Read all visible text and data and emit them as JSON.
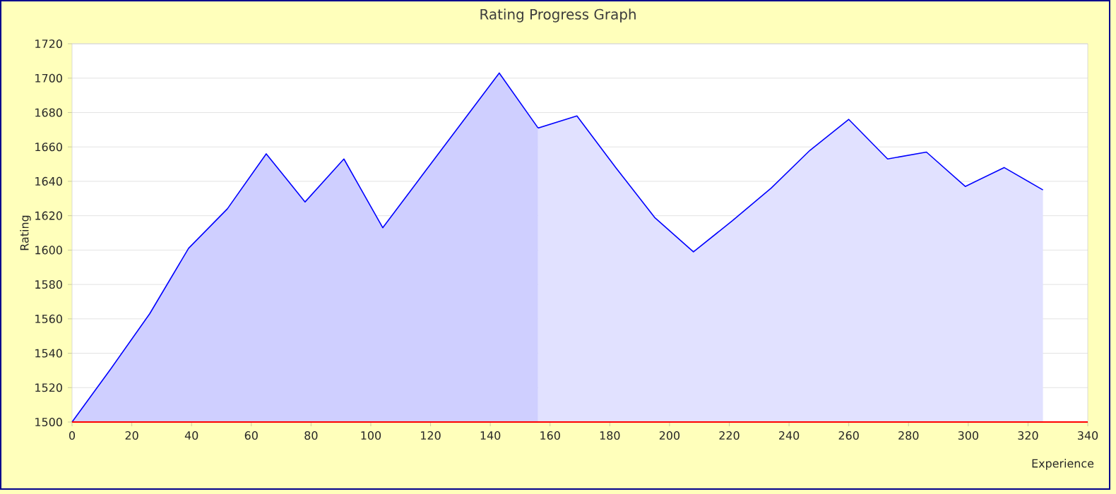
{
  "chart_data": {
    "type": "area",
    "title": "Rating Progress Graph",
    "xlabel": "Experience",
    "ylabel": "Rating",
    "color": "#0000ff",
    "xlim": [
      0,
      340
    ],
    "xticks": [
      0,
      20,
      40,
      60,
      80,
      100,
      120,
      140,
      160,
      180,
      200,
      220,
      240,
      260,
      280,
      300,
      320,
      340
    ],
    "ylim": [
      1500,
      1720
    ],
    "yticks": [
      1500,
      1520,
      1540,
      1560,
      1580,
      1600,
      1620,
      1640,
      1660,
      1680,
      1700,
      1720
    ],
    "grid": "y",
    "marker": "none",
    "line_style": "solid",
    "series": [
      {
        "color": "#cfcfff",
        "x": [
          0,
          13,
          26,
          39,
          52,
          65,
          78,
          91,
          104,
          117,
          130,
          143,
          156
        ],
        "values": [
          1500,
          1531,
          1563,
          1601,
          1624,
          1656,
          1628,
          1653,
          1613,
          1643,
          1673,
          1703,
          1671
        ]
      },
      {
        "color": "#e1e1ff",
        "x": [
          156,
          169,
          182,
          195,
          208,
          221,
          234,
          247,
          260,
          273,
          286,
          299,
          312,
          325
        ],
        "values": [
          1671,
          1678,
          1648,
          1619,
          1599,
          1617,
          1636,
          1658,
          1676,
          1653,
          1657,
          1637,
          1648,
          1635
        ]
      }
    ]
  }
}
